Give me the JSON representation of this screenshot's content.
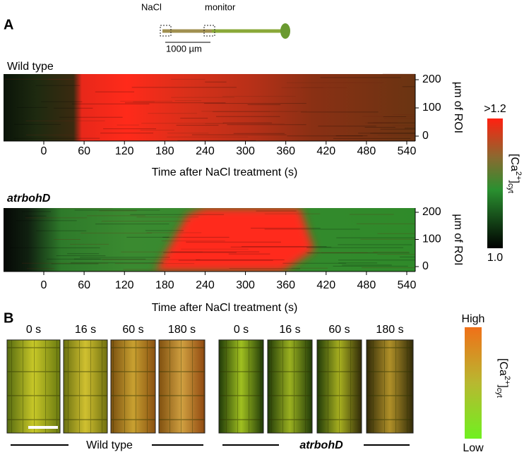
{
  "panel_a": {
    "label": "A",
    "schematic": {
      "stimulus": "NaCl",
      "monitor": "monitor",
      "scale_bar": "1000 µm"
    },
    "kymographs": [
      {
        "title": "Wild type",
        "x_ticks": [
          0,
          60,
          120,
          180,
          240,
          300,
          360,
          420,
          480,
          540
        ],
        "x_label": "Time after NaCl treatment (s)",
        "y_ticks": [
          0,
          100,
          200
        ],
        "y_label": "µm of ROI"
      },
      {
        "title": "atrbohD",
        "x_ticks": [
          0,
          60,
          120,
          180,
          240,
          300,
          360,
          420,
          480,
          540
        ],
        "x_label": "Time after NaCl treatment (s)",
        "y_ticks": [
          0,
          100,
          200
        ],
        "y_label": "µm of ROI"
      }
    ],
    "color_bar": {
      "max": ">1.2",
      "min": "1.0",
      "label": "[Ca",
      "label_sup": "2+",
      "label_close": "]",
      "label_sub": "cyt"
    }
  },
  "panel_b": {
    "label": "B",
    "time_points": [
      "0 s",
      "16 s",
      "60 s",
      "180 s"
    ],
    "genotypes": [
      "Wild type",
      "atrbohD"
    ],
    "color_bar": {
      "max": "High",
      "min": "Low",
      "label": "[Ca",
      "label_sup": "2+",
      "label_close": "]",
      "label_sub": "cyt"
    }
  }
}
